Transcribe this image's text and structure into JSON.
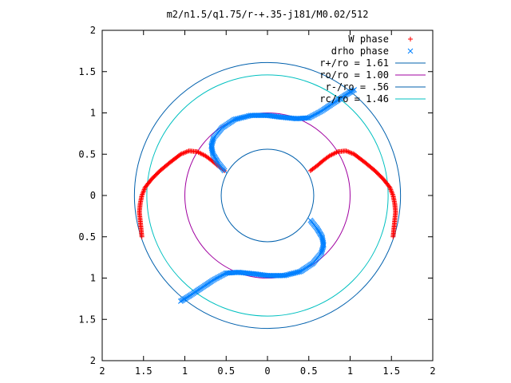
{
  "chart_data": {
    "type": "scatter",
    "title": "m2/n1.5/q1.75/r-+.35-j181/M0.02/512",
    "xlabel": "",
    "ylabel": "",
    "xlim": [
      -2,
      2
    ],
    "ylim": [
      -2,
      2
    ],
    "x_ticks": [
      -2,
      -1.5,
      -1,
      -0.5,
      0,
      0.5,
      1,
      1.5,
      2
    ],
    "x_tick_labels": [
      "2",
      "1.5",
      "1",
      "0.5",
      "0",
      "0.5",
      "1",
      "1.5",
      "2"
    ],
    "y_ticks": [
      2,
      1.5,
      1,
      0.5,
      0,
      -0.5,
      -1,
      -1.5,
      -2
    ],
    "y_tick_labels": [
      "2",
      "1.5",
      "1",
      "0.5",
      "0",
      "0.5",
      "1",
      "1.5",
      "2"
    ],
    "grid": false,
    "legend_position": "top-right",
    "series": [
      {
        "name": "W phase",
        "marker": "plus",
        "color": "#ff0000",
        "curves": [
          [
            [
              -1.52,
              -0.5
            ],
            [
              -1.53,
              -0.4
            ],
            [
              -1.54,
              -0.3
            ],
            [
              -1.55,
              -0.2
            ],
            [
              -1.54,
              -0.1
            ],
            [
              -1.52,
              0.0
            ],
            [
              -1.48,
              0.1
            ],
            [
              -1.4,
              0.2
            ],
            [
              -1.3,
              0.3
            ],
            [
              -1.18,
              0.4
            ],
            [
              -1.05,
              0.5
            ],
            [
              -0.95,
              0.54
            ],
            [
              -0.85,
              0.53
            ],
            [
              -0.75,
              0.48
            ],
            [
              -0.67,
              0.42
            ],
            [
              -0.6,
              0.36
            ],
            [
              -0.52,
              0.3
            ]
          ],
          [
            [
              1.52,
              -0.5
            ],
            [
              1.53,
              -0.4
            ],
            [
              1.54,
              -0.3
            ],
            [
              1.55,
              -0.2
            ],
            [
              1.54,
              -0.1
            ],
            [
              1.52,
              0.0
            ],
            [
              1.48,
              0.1
            ],
            [
              1.4,
              0.2
            ],
            [
              1.3,
              0.3
            ],
            [
              1.18,
              0.4
            ],
            [
              1.05,
              0.5
            ],
            [
              0.95,
              0.54
            ],
            [
              0.85,
              0.53
            ],
            [
              0.75,
              0.48
            ],
            [
              0.67,
              0.42
            ],
            [
              0.6,
              0.36
            ],
            [
              0.52,
              0.3
            ]
          ]
        ]
      },
      {
        "name": "drho phase",
        "marker": "cross",
        "color": "#0080ff",
        "curves": [
          [
            [
              -0.52,
              0.3
            ],
            [
              -0.6,
              0.4
            ],
            [
              -0.66,
              0.5
            ],
            [
              -0.68,
              0.6
            ],
            [
              -0.65,
              0.7
            ],
            [
              -0.55,
              0.82
            ],
            [
              -0.4,
              0.92
            ],
            [
              -0.2,
              0.97
            ],
            [
              0.0,
              0.97
            ],
            [
              0.15,
              0.95
            ],
            [
              0.35,
              0.93
            ],
            [
              0.5,
              0.94
            ],
            [
              0.65,
              1.02
            ],
            [
              0.8,
              1.12
            ],
            [
              0.95,
              1.22
            ],
            [
              1.05,
              1.28
            ]
          ],
          [
            [
              0.52,
              -0.3
            ],
            [
              0.6,
              -0.4
            ],
            [
              0.66,
              -0.5
            ],
            [
              0.68,
              -0.6
            ],
            [
              0.65,
              -0.7
            ],
            [
              0.55,
              -0.82
            ],
            [
              0.4,
              -0.92
            ],
            [
              0.2,
              -0.97
            ],
            [
              0.0,
              -0.97
            ],
            [
              -0.15,
              -0.95
            ],
            [
              -0.35,
              -0.93
            ],
            [
              -0.5,
              -0.94
            ],
            [
              -0.65,
              -1.02
            ],
            [
              -0.8,
              -1.12
            ],
            [
              -0.95,
              -1.22
            ],
            [
              -1.05,
              -1.28
            ]
          ]
        ]
      },
      {
        "name": "r+/ro = 1.61",
        "type": "circle",
        "radius": 1.61,
        "color": "#0060ad"
      },
      {
        "name": "ro/ro = 1.00",
        "type": "circle",
        "radius": 1.0,
        "color": "#a000a0"
      },
      {
        "name": "r-/ro = .56",
        "type": "circle",
        "radius": 0.56,
        "color": "#0060ad"
      },
      {
        "name": "rc/ro = 1.46",
        "type": "circle",
        "radius": 1.46,
        "color": "#00c0c0"
      }
    ]
  }
}
